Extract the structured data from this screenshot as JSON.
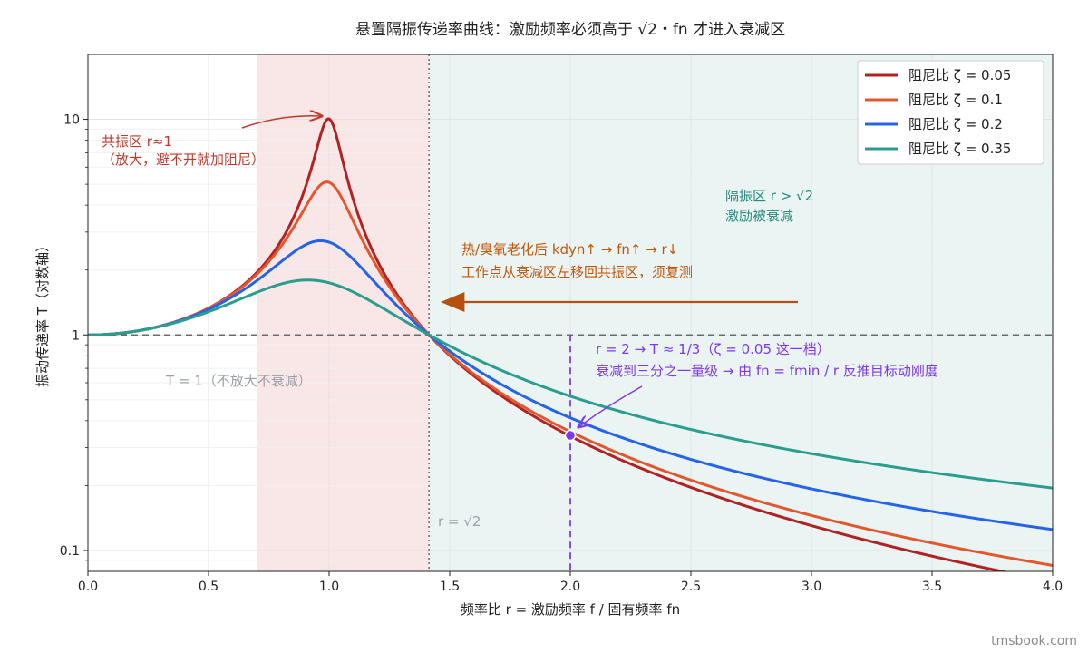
{
  "chart_data": {
    "type": "line",
    "title": "悬置隔振传递率曲线：激励频率必须高于 √2・fn 才进入衰减区",
    "xlabel": "频率比 r = 激励频率 f / 固有频率 fn",
    "ylabel": "振动传递率 T（对数轴）",
    "xlim": [
      0.0,
      4.0
    ],
    "ylim": [
      0.08,
      20
    ],
    "y_scale": "log",
    "x_ticks": [
      "0.0",
      "0.5",
      "1.0",
      "1.5",
      "2.0",
      "2.5",
      "3.0",
      "3.5",
      "4.0"
    ],
    "y_ticks": [
      "0.1",
      "1",
      "10"
    ],
    "grid": true,
    "legend_position": "top-right",
    "series": [
      {
        "name": "阻尼比 ζ = 0.05",
        "zeta": 0.05,
        "color": "#b22222"
      },
      {
        "name": "阻尼比 ζ = 0.1",
        "zeta": 0.1,
        "color": "#e4572e"
      },
      {
        "name": "阻尼比 ζ = 0.2",
        "zeta": 0.2,
        "color": "#2563eb"
      },
      {
        "name": "阻尼比 ζ = 0.35",
        "zeta": 0.35,
        "color": "#2a9d8f"
      }
    ],
    "regions": [
      {
        "name": "共振区",
        "from": 0.7,
        "to": 1.414,
        "color": "#f9e6e6"
      },
      {
        "name": "隔振区",
        "from": 1.414,
        "to": 4.0,
        "color": "#eaf4f3"
      }
    ],
    "reference_lines": [
      {
        "kind": "horizontal",
        "value": 1,
        "label": "T = 1（不放大不衰减）"
      },
      {
        "kind": "vertical",
        "value": 1.414,
        "label": "r = √2"
      },
      {
        "kind": "vertical",
        "value": 2.0
      }
    ],
    "highlight_point": {
      "x": 2.0,
      "y": 0.342
    },
    "annotations": {
      "resonance_line1": "共振区 r≈1",
      "resonance_line2": "（放大，避不开就加阻尼）",
      "isolation_line1": "隔振区 r > √2",
      "isolation_line2": "激励被衰减",
      "aging_line1": "热/臭氧老化后 kdyn↑ → fn↑ → r↓",
      "aging_line2": "工作点从衰减区左移回共振区，须复测",
      "unity": "T = 1（不放大不衰减）",
      "sqrt2": "r = √2",
      "point_line1": "r = 2 → T ≈ 1/3（ζ = 0.05 这一档）",
      "point_line2": "衰减到三分之一量级 → 由 fn = fmin / r 反推目标动刚度"
    },
    "colors": {
      "resonance_text": "#c0392b",
      "isolation_text": "#2a8a7e",
      "aging_text": "#c2570c",
      "aging_arrow": "#b5500f",
      "point_text": "#7c3aed",
      "unity_text": "#9aa0a6",
      "sqrt2_text": "#9aa0a6"
    }
  },
  "watermark": "tmsbook.com"
}
